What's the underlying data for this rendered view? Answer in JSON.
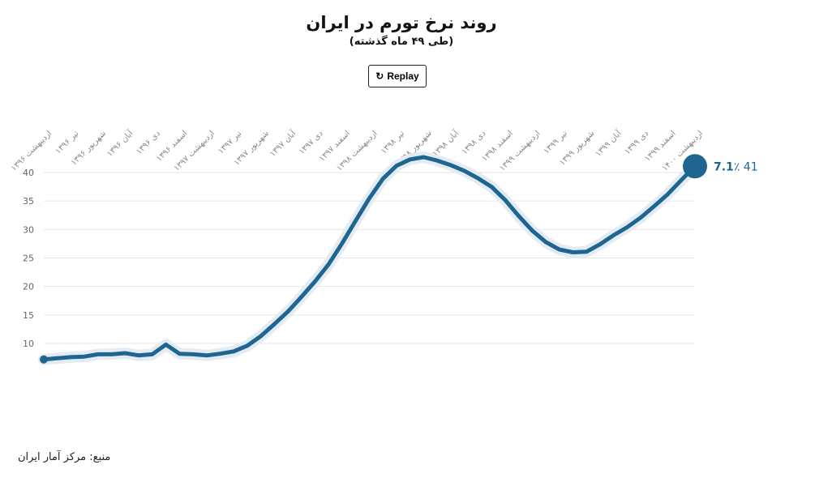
{
  "title": "روند نرخ تورم در ایران",
  "subtitle": "(طی ۴۹ ماه گذشته)",
  "replay": {
    "label": "Replay",
    "icon": "replay-icon"
  },
  "source": "منبع: مرکز آمار ایران",
  "end_label": {
    "bold": "7.1",
    "rest": "٪ 41"
  },
  "colors": {
    "line": "#1f6591",
    "halo": "#e3ebf3",
    "grid": "#e6e6e6"
  },
  "chart_data": {
    "type": "line",
    "ylim": [
      7,
      43
    ],
    "yticks": [
      10,
      15,
      20,
      25,
      30,
      35,
      40
    ],
    "grid": true,
    "xtick_labels": [
      "اردیبهشت ۱۳۹۶",
      "تیر ۱۳۹۶",
      "شهریور ۱۳۹۶",
      "آبان ۱۳۹۶",
      "دی ۱۳۹۶",
      "اسفند ۱۳۹۶",
      "اردیبهشت ۱۳۹۷",
      "تیر ۱۳۹۷",
      "شهریور ۱۳۹۷",
      "آبان ۱۳۹۷",
      "دی ۱۳۹۷",
      "اسفند ۱۳۹۷",
      "اردیبهشت ۱۳۹۸",
      "تیر ۱۳۹۸",
      "شهریور ۱۳۹۸",
      "آبان ۱۳۹۸",
      "دی ۱۳۹۸",
      "اسفند ۱۳۹۸",
      "اردیبهشت ۱۳۹۹",
      "تیر ۱۳۹۹",
      "شهریور ۱۳۹۹",
      "آبان ۱۳۹۹",
      "دی ۱۳۹۹",
      "اسفند ۱۳۹۹",
      "اردیبهشت ۱۴۰۰"
    ],
    "values": [
      7.2,
      7.4,
      7.6,
      7.7,
      8.1,
      8.1,
      8.3,
      7.9,
      8.1,
      9.8,
      8.2,
      8.1,
      7.9,
      8.2,
      8.6,
      9.6,
      11.3,
      13.4,
      15.6,
      18.2,
      20.9,
      23.9,
      27.6,
      31.6,
      35.5,
      38.9,
      41.2,
      42.3,
      42.7,
      42.1,
      41.3,
      40.3,
      39.0,
      37.5,
      35.2,
      32.4,
      29.8,
      27.8,
      26.5,
      26.0,
      26.1,
      27.4,
      29.0,
      30.4,
      32.1,
      34.1,
      36.2,
      38.7,
      41.1
    ]
  }
}
